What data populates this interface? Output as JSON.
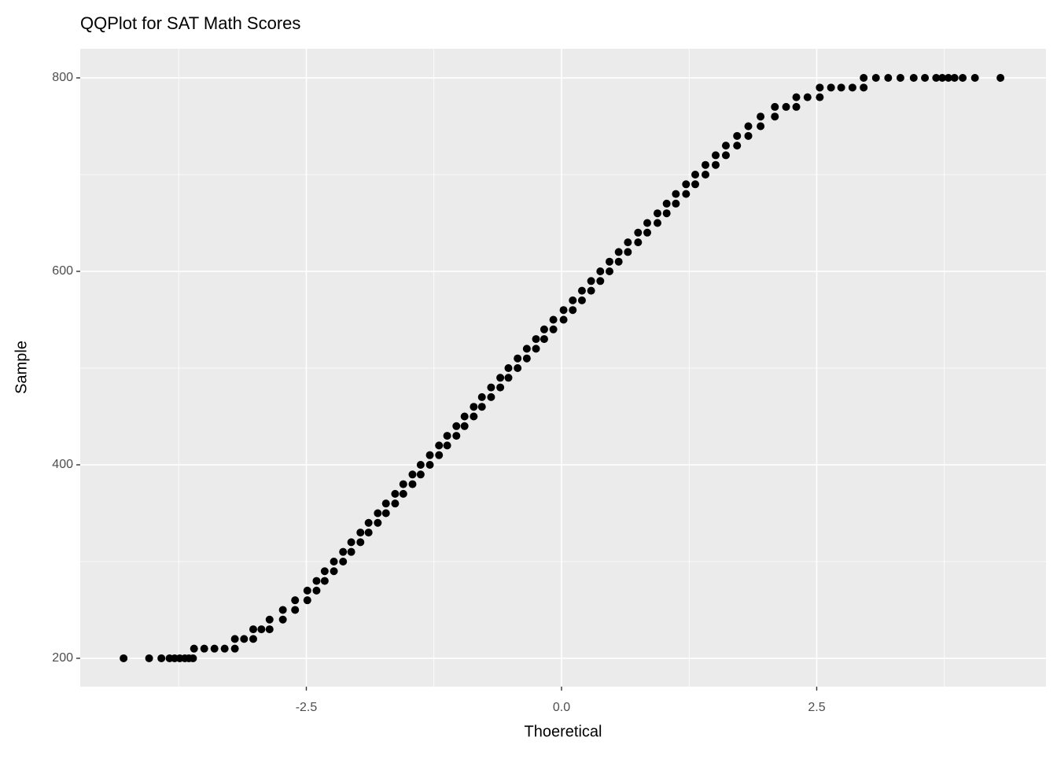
{
  "chart_data": {
    "type": "scatter",
    "title": "QQPlot for SAT Math Scores",
    "x_label": "Thoeretical",
    "y_label": "Sample",
    "xlim": [
      -4.715,
      4.746
    ],
    "ylim": [
      170.7,
      830.1
    ],
    "xticks": [
      -2.5,
      {
        "value": 0,
        "label": "0.0"
      },
      2.5
    ],
    "yticks": [
      200,
      400,
      600,
      800
    ],
    "x_minor_grid": [
      -3.75,
      -1.25,
      1.25,
      3.75
    ],
    "y_minor_grid": [
      300,
      500,
      700
    ],
    "grid": true,
    "color": "#000000",
    "x": [
      -4.29,
      -4.04,
      -3.92,
      -3.84,
      -3.79,
      -3.74,
      -3.69,
      -3.65,
      -3.61,
      -3.6,
      -3.5,
      -3.4,
      -3.3,
      -3.2,
      -3.2,
      -3.11,
      -3.02,
      -3.02,
      -2.94,
      -2.86,
      -2.86,
      -2.73,
      -2.73,
      -2.61,
      -2.61,
      -2.49,
      -2.49,
      -2.4,
      -2.4,
      -2.32,
      -2.32,
      -2.23,
      -2.23,
      -2.14,
      -2.14,
      -2.06,
      -2.06,
      -1.97,
      -1.97,
      -1.89,
      -1.89,
      -1.8,
      -1.8,
      -1.72,
      -1.72,
      -1.63,
      -1.63,
      -1.55,
      -1.55,
      -1.46,
      -1.46,
      -1.38,
      -1.38,
      -1.29,
      -1.29,
      -1.2,
      -1.2,
      -1.12,
      -1.12,
      -1.03,
      -1.03,
      -0.95,
      -0.95,
      -0.86,
      -0.86,
      -0.78,
      -0.78,
      -0.69,
      -0.69,
      -0.6,
      -0.6,
      -0.52,
      -0.52,
      -0.43,
      -0.43,
      -0.34,
      -0.34,
      -0.25,
      -0.25,
      -0.17,
      -0.17,
      -0.08,
      -0.08,
      0.02,
      0.02,
      0.11,
      0.11,
      0.2,
      0.2,
      0.29,
      0.29,
      0.38,
      0.38,
      0.47,
      0.47,
      0.56,
      0.56,
      0.65,
      0.65,
      0.75,
      0.75,
      0.84,
      0.84,
      0.94,
      0.94,
      1.03,
      1.03,
      1.12,
      1.12,
      1.22,
      1.22,
      1.31,
      1.31,
      1.41,
      1.41,
      1.51,
      1.51,
      1.61,
      1.61,
      1.72,
      1.72,
      1.83,
      1.83,
      1.95,
      1.95,
      2.09,
      2.09,
      2.2,
      2.3,
      2.3,
      2.41,
      2.53,
      2.53,
      2.64,
      2.74,
      2.85,
      2.96,
      2.96,
      3.08,
      3.2,
      3.32,
      3.45,
      3.56,
      3.67,
      3.73,
      3.79,
      3.85,
      3.93,
      4.05,
      4.3
    ],
    "values": [
      200,
      200,
      200,
      200,
      200,
      200,
      200,
      200,
      200,
      210,
      210,
      210,
      210,
      210,
      220,
      220,
      220,
      230,
      230,
      230,
      240,
      240,
      250,
      250,
      260,
      260,
      270,
      270,
      280,
      280,
      290,
      290,
      300,
      300,
      310,
      310,
      320,
      320,
      330,
      330,
      340,
      340,
      350,
      350,
      360,
      360,
      370,
      370,
      380,
      380,
      390,
      390,
      400,
      400,
      410,
      410,
      420,
      420,
      430,
      430,
      440,
      440,
      450,
      450,
      460,
      460,
      470,
      470,
      480,
      480,
      490,
      490,
      500,
      500,
      510,
      510,
      520,
      520,
      530,
      530,
      540,
      540,
      550,
      550,
      560,
      560,
      570,
      570,
      580,
      580,
      590,
      590,
      600,
      600,
      610,
      610,
      620,
      620,
      630,
      630,
      640,
      640,
      650,
      650,
      660,
      660,
      670,
      670,
      680,
      680,
      690,
      690,
      700,
      700,
      710,
      710,
      720,
      720,
      730,
      730,
      740,
      740,
      750,
      750,
      760,
      760,
      770,
      770,
      770,
      780,
      780,
      780,
      790,
      790,
      790,
      790,
      790,
      800,
      800,
      800,
      800,
      800,
      800,
      800,
      800,
      800,
      800,
      800,
      800,
      800
    ]
  }
}
